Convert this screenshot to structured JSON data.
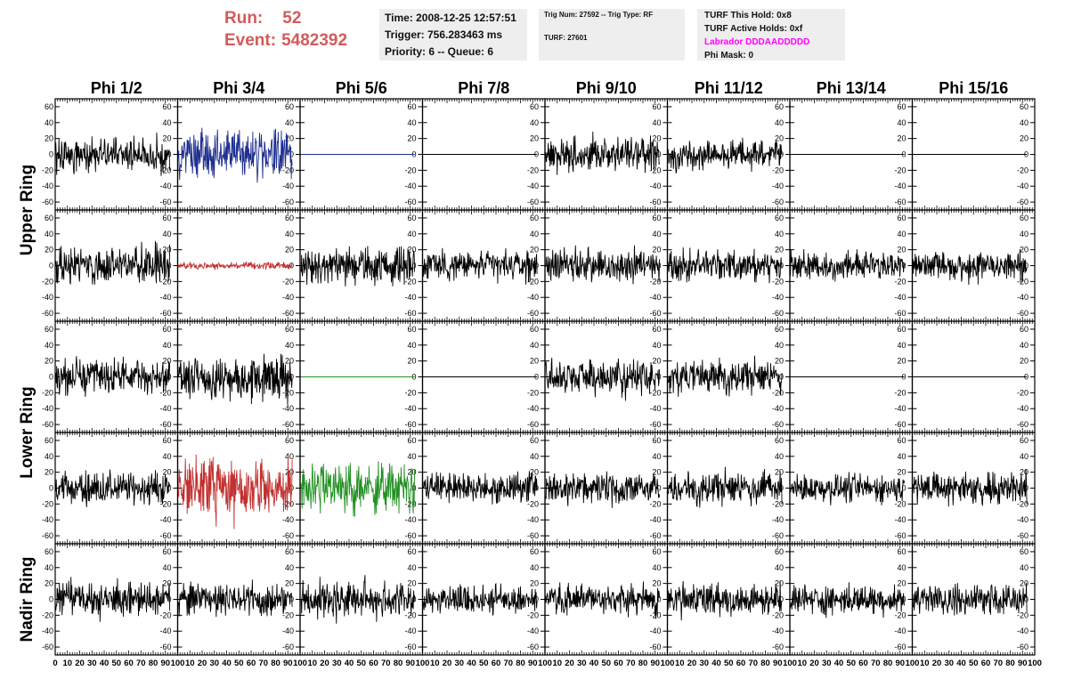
{
  "header": {
    "run_label": "Run:",
    "run_value": "52",
    "event_label": "Event:",
    "event_value": "5482392",
    "time": "Time: 2008-12-25 12:57:51",
    "trigger": "Trigger: 756.283463 ms",
    "priority_queue": "Priority: 6 -- Queue: 6",
    "trig_num_type": "Trig Num: 27592 -- Trig Type: RF",
    "turf": "TURF: 27601",
    "turf_this_hold": "TURF This Hold: 0x8",
    "turf_active_holds": "TURF Active Holds: 0xf",
    "labrador": "Labrador DDDAADDDDD",
    "phi_mask": "Phi Mask: 0"
  },
  "colors": {
    "run_text": "#d45a5a",
    "labrador_text": "#ff00ff",
    "trace_default": "#000000",
    "trace_blue": "#1f2f8f",
    "trace_red": "#c23030",
    "trace_green": "#239023",
    "info_box": "#eeeeee"
  },
  "chart_data": {
    "type": "line",
    "columns": [
      "Phi 1/2",
      "Phi 3/4",
      "Phi 5/6",
      "Phi 7/8",
      "Phi 9/10",
      "Phi 11/12",
      "Phi 13/14",
      "Phi 15/16"
    ],
    "row_groups": [
      "Upper Ring",
      "Lower Ring",
      "Nadir Ring"
    ],
    "xlim": [
      0,
      100
    ],
    "ylim": [
      -70,
      70
    ],
    "x_ticks": [
      "0",
      "10",
      "20",
      "30",
      "40",
      "50",
      "60",
      "70",
      "80",
      "90",
      "100"
    ],
    "y_ticks": [
      "60",
      "40",
      "20",
      "0",
      "-20",
      "-40",
      "-60"
    ],
    "panels": [
      [
        {
          "color": "black",
          "amp": 16,
          "seed": 11
        },
        {
          "color": "blue",
          "amp": 22,
          "seed": 12
        },
        {
          "color": "blue",
          "amp": 0,
          "seed": 13
        },
        {
          "color": "black",
          "amp": 0,
          "seed": 14
        },
        {
          "color": "black",
          "amp": 16,
          "seed": 15
        },
        {
          "color": "black",
          "amp": 14,
          "seed": 16
        },
        {
          "color": "black",
          "amp": 0,
          "seed": 17
        },
        {
          "color": "black",
          "amp": 0,
          "seed": 18
        }
      ],
      [
        {
          "color": "black",
          "amp": 18,
          "seed": 21
        },
        {
          "color": "red",
          "amp": 3,
          "seed": 22
        },
        {
          "color": "black",
          "amp": 18,
          "seed": 23
        },
        {
          "color": "black",
          "amp": 14,
          "seed": 24
        },
        {
          "color": "black",
          "amp": 15,
          "seed": 25
        },
        {
          "color": "black",
          "amp": 15,
          "seed": 26
        },
        {
          "color": "black",
          "amp": 13,
          "seed": 27
        },
        {
          "color": "black",
          "amp": 14,
          "seed": 28
        }
      ],
      [
        {
          "color": "black",
          "amp": 16,
          "seed": 31
        },
        {
          "color": "black",
          "amp": 20,
          "seed": 32
        },
        {
          "color": "green",
          "amp": 0,
          "seed": 33
        },
        {
          "color": "black",
          "amp": 0,
          "seed": 34
        },
        {
          "color": "black",
          "amp": 16,
          "seed": 35
        },
        {
          "color": "black",
          "amp": 15,
          "seed": 36
        },
        {
          "color": "black",
          "amp": 0,
          "seed": 37
        },
        {
          "color": "black",
          "amp": 0,
          "seed": 38
        }
      ],
      [
        {
          "color": "black",
          "amp": 15,
          "seed": 41
        },
        {
          "color": "red",
          "amp": 28,
          "seed": 42
        },
        {
          "color": "green",
          "amp": 24,
          "seed": 43
        },
        {
          "color": "black",
          "amp": 14,
          "seed": 44
        },
        {
          "color": "black",
          "amp": 14,
          "seed": 45
        },
        {
          "color": "black",
          "amp": 15,
          "seed": 46
        },
        {
          "color": "black",
          "amp": 13,
          "seed": 47
        },
        {
          "color": "black",
          "amp": 15,
          "seed": 48
        }
      ],
      [
        {
          "color": "black",
          "amp": 16,
          "seed": 51
        },
        {
          "color": "black",
          "amp": 16,
          "seed": 52
        },
        {
          "color": "black",
          "amp": 18,
          "seed": 53
        },
        {
          "color": "black",
          "amp": 14,
          "seed": 54
        },
        {
          "color": "black",
          "amp": 14,
          "seed": 55
        },
        {
          "color": "black",
          "amp": 15,
          "seed": 56
        },
        {
          "color": "black",
          "amp": 14,
          "seed": 57
        },
        {
          "color": "black",
          "amp": 14,
          "seed": 58
        }
      ]
    ]
  }
}
